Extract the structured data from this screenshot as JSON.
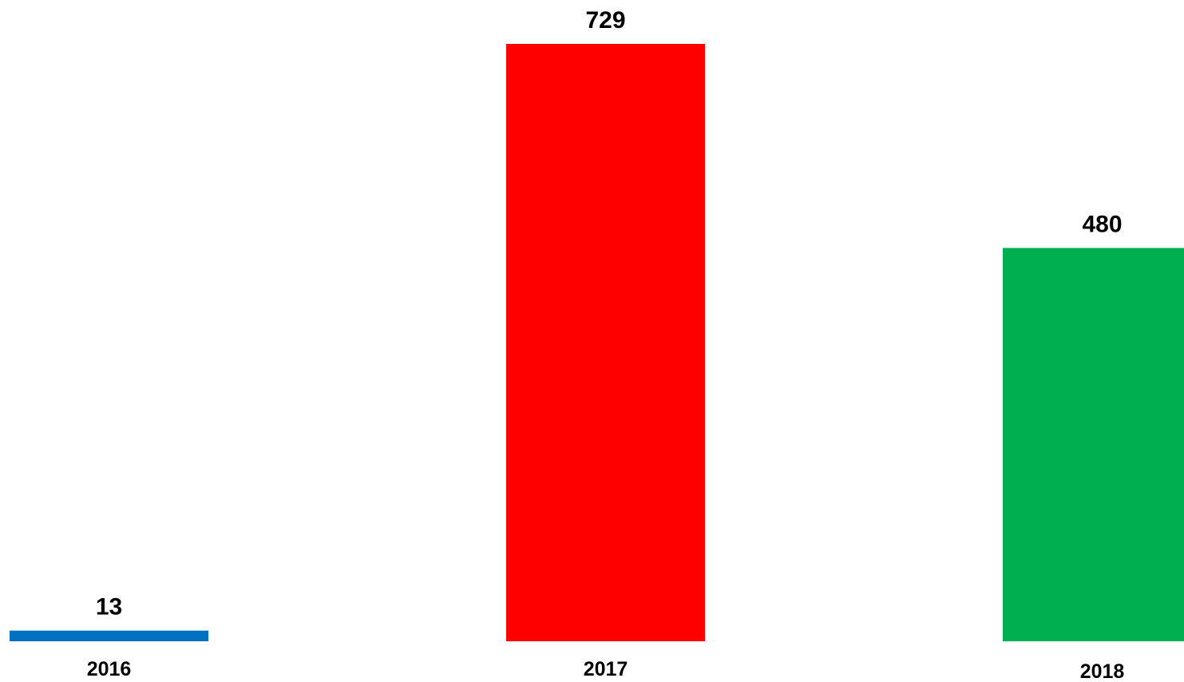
{
  "chart_data": {
    "type": "bar",
    "categories": [
      "2016",
      "2017",
      "2018"
    ],
    "values": [
      13,
      729,
      480
    ],
    "colors": [
      "#0070c0",
      "#ff0000",
      "#00b050"
    ]
  }
}
